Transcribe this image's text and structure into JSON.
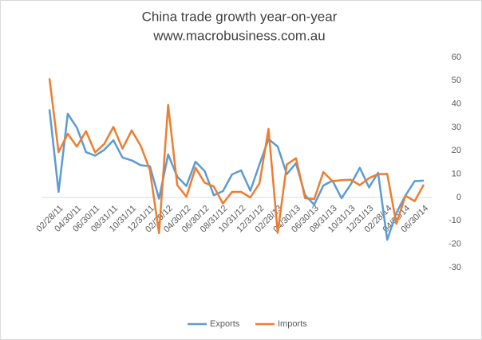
{
  "chart_data": {
    "type": "line",
    "title": "China trade growth year-on-year",
    "subtitle": "www.macrobusiness.com.au",
    "categories": [
      null,
      "02/28/11",
      null,
      "04/30/11",
      null,
      "06/30/11",
      null,
      "08/31/11",
      null,
      "10/31/11",
      null,
      "12/31/11",
      null,
      "02/29/12",
      null,
      "04/30/12",
      null,
      "06/30/12",
      null,
      "08/31/12",
      null,
      "10/31/12",
      null,
      "12/31/12",
      null,
      "02/28/13",
      null,
      "04/30/13",
      null,
      "06/30/13",
      null,
      "08/31/13",
      null,
      "10/31/13",
      null,
      "12/31/13",
      null,
      "02/28/14",
      null,
      "04/30/14",
      null,
      "06/30/14"
    ],
    "series": [
      {
        "name": "Exports",
        "color": "#5b9bd5",
        "values": [
          37.7,
          2.4,
          35.8,
          29.9,
          19.4,
          17.9,
          20.4,
          24.5,
          17.1,
          15.9,
          13.8,
          13.4,
          -0.5,
          18.4,
          8.9,
          4.9,
          15.3,
          11.3,
          1.0,
          2.7,
          9.9,
          11.6,
          2.9,
          14.1,
          25.0,
          21.8,
          10.0,
          14.7,
          1.0,
          -3.1,
          5.1,
          7.2,
          -0.3,
          5.6,
          12.7,
          4.3,
          10.6,
          -18.1,
          -6.6,
          0.9,
          7.0,
          7.2
        ]
      },
      {
        "name": "Imports",
        "color": "#ed7d31",
        "values": [
          51.0,
          19.4,
          27.3,
          21.8,
          28.4,
          19.3,
          22.9,
          30.2,
          20.9,
          28.7,
          22.1,
          11.8,
          -15.3,
          39.6,
          5.3,
          0.3,
          12.7,
          6.3,
          4.7,
          -2.6,
          2.4,
          2.4,
          0.0,
          6.0,
          29.4,
          -15.2,
          14.1,
          16.8,
          -0.3,
          -0.7,
          10.9,
          7.0,
          7.4,
          7.6,
          5.3,
          8.3,
          10.0,
          10.1,
          -11.3,
          0.8,
          -1.6,
          5.5
        ]
      }
    ],
    "ylim": [
      -30,
      60
    ],
    "yticks": [
      -30,
      -20,
      -10,
      0,
      10,
      20,
      30,
      40,
      50,
      60
    ],
    "y_axis_side": "right",
    "legend": "bottom"
  }
}
